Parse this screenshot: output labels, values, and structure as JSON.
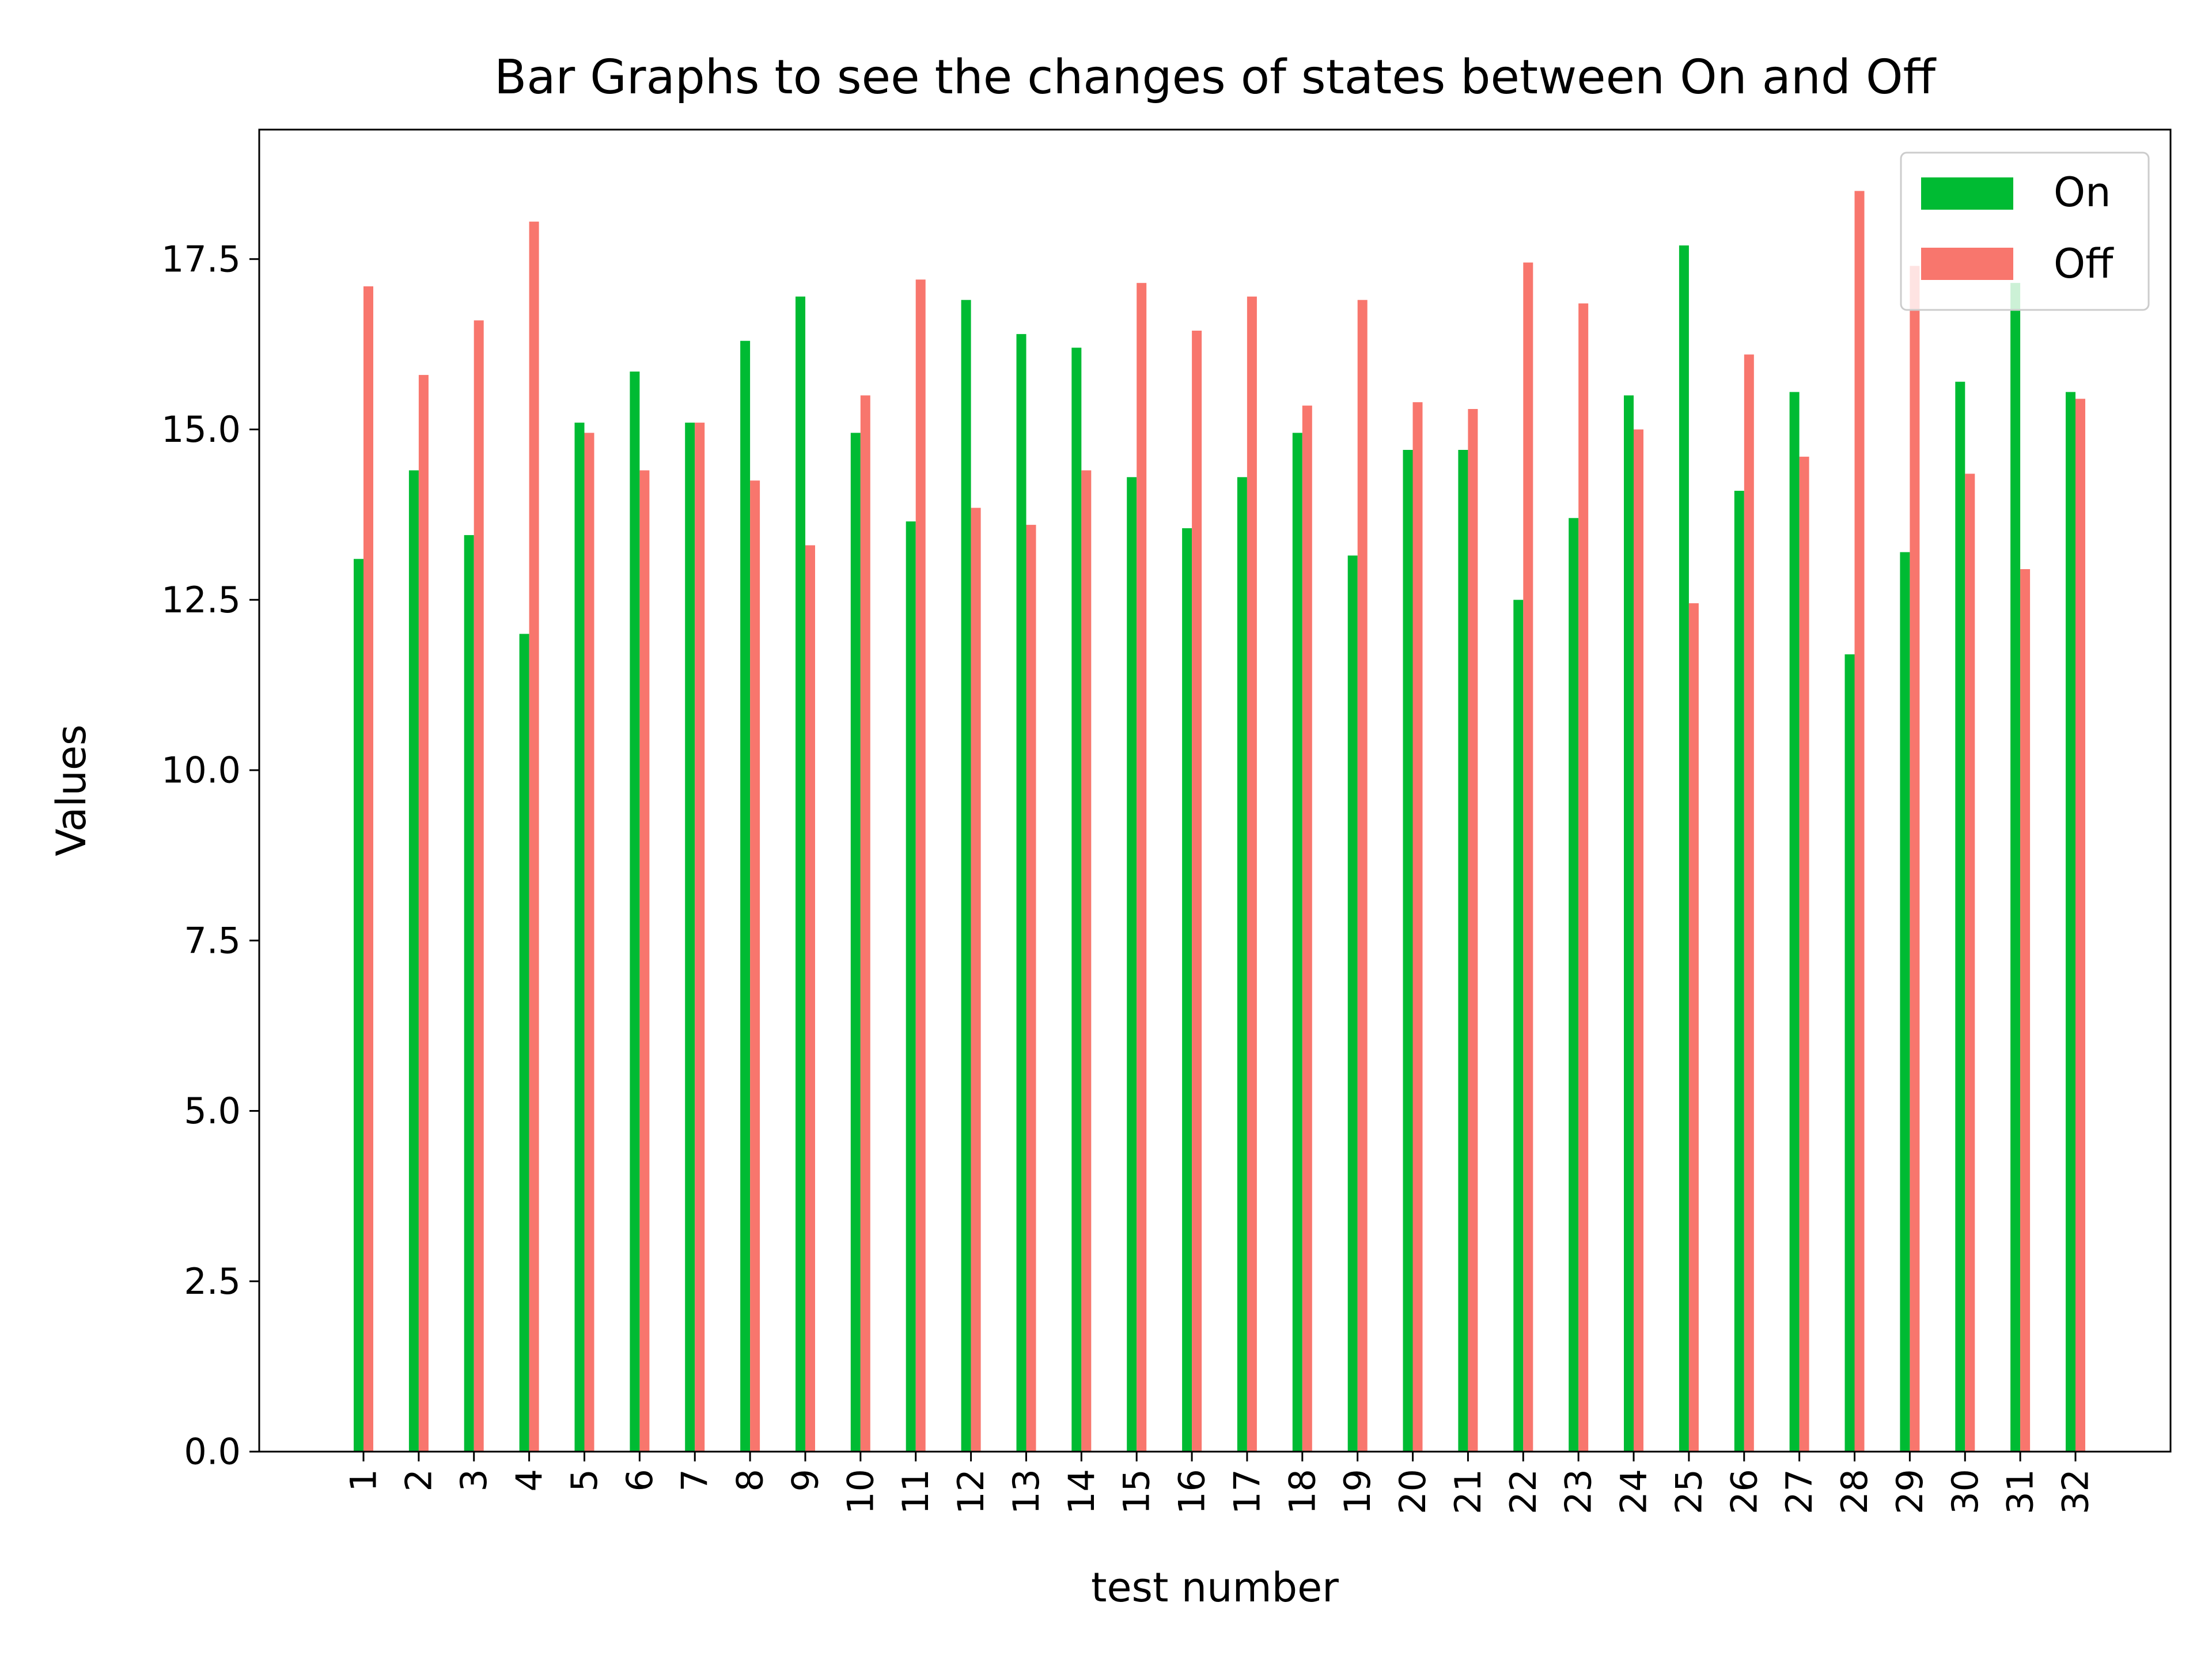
{
  "chart_data": {
    "type": "bar",
    "title": "Bar Graphs to see the changes of states between On and Off",
    "xlabel": "test number",
    "ylabel": "Values",
    "ylim": [
      0,
      19.4
    ],
    "yticks": [
      "0.0",
      "2.5",
      "5.0",
      "7.5",
      "10.0",
      "12.5",
      "15.0",
      "17.5"
    ],
    "categories": [
      "1",
      "2",
      "3",
      "4",
      "5",
      "6",
      "7",
      "8",
      "9",
      "10",
      "11",
      "12",
      "13",
      "14",
      "15",
      "16",
      "17",
      "18",
      "19",
      "20",
      "21",
      "22",
      "23",
      "24",
      "25",
      "26",
      "27",
      "28",
      "29",
      "30",
      "31",
      "32"
    ],
    "series": [
      {
        "name": "On",
        "color": "#00bb33",
        "values": [
          13.1,
          14.4,
          13.45,
          12.0,
          15.1,
          15.85,
          15.1,
          16.3,
          16.95,
          14.95,
          13.65,
          16.9,
          16.4,
          16.2,
          14.3,
          13.55,
          14.3,
          14.95,
          13.15,
          14.7,
          14.7,
          12.5,
          13.7,
          15.5,
          17.7,
          14.1,
          15.55,
          11.7,
          13.2,
          15.7,
          17.15,
          15.55
        ]
      },
      {
        "name": "Off",
        "color": "#f8766d",
        "values": [
          17.1,
          15.8,
          16.6,
          18.05,
          14.95,
          14.4,
          15.1,
          14.25,
          13.3,
          15.5,
          17.2,
          13.85,
          13.6,
          14.4,
          17.15,
          16.45,
          16.95,
          15.35,
          16.9,
          15.4,
          15.3,
          17.45,
          16.85,
          15.0,
          12.45,
          16.1,
          14.6,
          18.5,
          17.4,
          14.35,
          12.95,
          15.45
        ]
      }
    ],
    "grid": false,
    "legend_position": "top-right"
  }
}
